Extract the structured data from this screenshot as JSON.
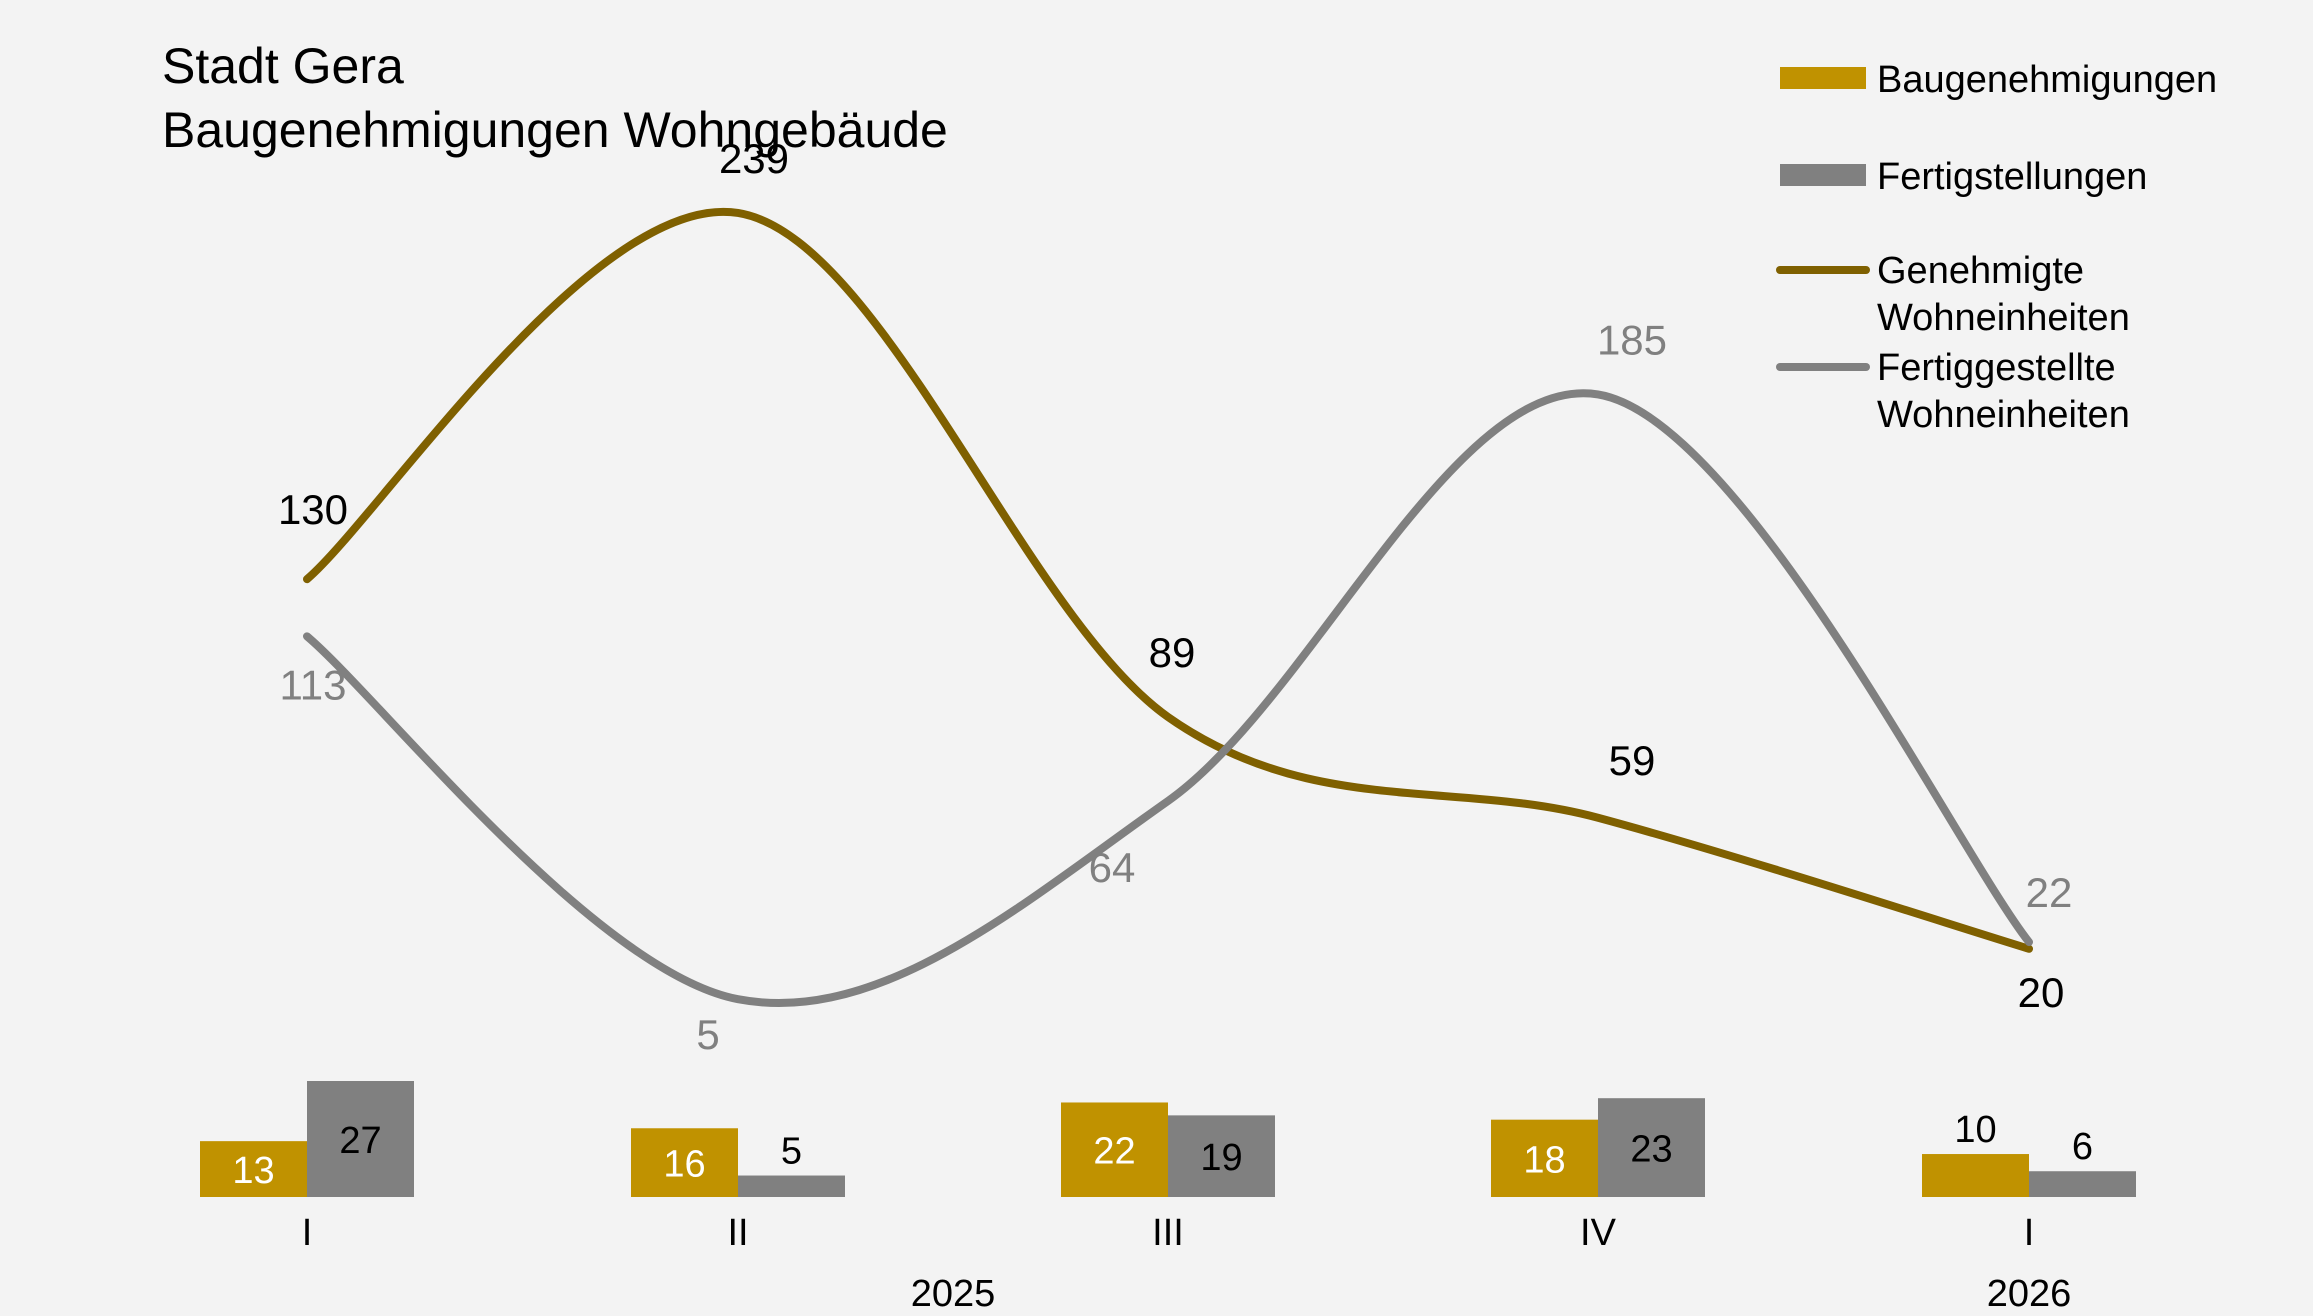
{
  "chart_data": {
    "type": "bar",
    "title_lines": [
      "Stadt Gera",
      "Baugenehmigungen Wohngebäude"
    ],
    "categories": [
      "I",
      "II",
      "III",
      "IV",
      "I"
    ],
    "category_groups": [
      {
        "label": "2025",
        "categories": [
          0,
          1,
          2,
          3
        ]
      },
      {
        "label": "2026",
        "categories": [
          4
        ]
      }
    ],
    "bar_series": [
      {
        "name": "Baugenehmigungen",
        "color": "#c09200",
        "label_color": "#ffffff",
        "values": [
          13,
          16,
          22,
          18,
          10
        ]
      },
      {
        "name": "Fertigstellungen",
        "color": "#808080",
        "label_color": "#000000",
        "values": [
          27,
          5,
          19,
          23,
          6
        ]
      }
    ],
    "line_series": [
      {
        "name": "Genehmigte Wohneinheiten",
        "legend_lines": [
          "Genehmigte",
          "Wohneinheiten"
        ],
        "color": "#7f6000",
        "label_color": "#000000",
        "values": [
          130,
          239,
          89,
          59,
          20
        ],
        "smooth": true
      },
      {
        "name": "Fertiggestellte Wohneinheiten",
        "legend_lines": [
          "Fertiggestellte",
          "Wohneinheiten"
        ],
        "color": "#808080",
        "label_color": "#808080",
        "values": [
          113,
          5,
          64,
          185,
          22
        ],
        "smooth": true
      }
    ],
    "legend_position": "top-right",
    "grid": false
  }
}
